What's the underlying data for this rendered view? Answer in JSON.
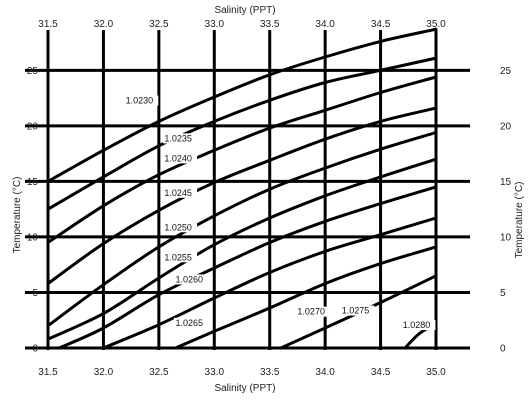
{
  "chart_data": {
    "type": "line",
    "title": "",
    "xlabel_top": "Salinity (PPT)",
    "xlabel_bottom": "Salinity (PPT)",
    "ylabel_left": "Temperature (°C)",
    "ylabel_right": "Temperature (°C)",
    "xlim": [
      31.5,
      35.0
    ],
    "ylim": [
      0,
      28
    ],
    "x_ticks": [
      31.5,
      32.0,
      32.5,
      33.0,
      33.5,
      34.0,
      34.5,
      35.0
    ],
    "x_tick_labels_top": [
      "31.5",
      "32.0",
      "32.5",
      "33.0",
      "33.5",
      "34.0",
      "34.5",
      "35.0"
    ],
    "x_tick_labels_bottom": [
      "31.5",
      "32.0",
      "32.5",
      "33.0",
      "33.5",
      "34.0",
      "34.5",
      "35.0"
    ],
    "y_ticks": [
      0,
      5,
      10,
      15,
      20,
      25
    ],
    "y_tick_labels": [
      "0",
      "5",
      "10",
      "15",
      "20",
      "25"
    ],
    "grid": true,
    "series": [
      {
        "name": "1.0230",
        "label_at": [
          32.2,
          22.0
        ],
        "points": [
          [
            31.5,
            15.0
          ],
          [
            32.0,
            17.8
          ],
          [
            32.5,
            20.4
          ],
          [
            33.0,
            22.6
          ],
          [
            33.5,
            24.6
          ],
          [
            34.0,
            26.2
          ],
          [
            34.5,
            27.6
          ],
          [
            35.0,
            28.7
          ]
        ]
      },
      {
        "name": "1.0235",
        "label_at": [
          32.55,
          18.6
        ],
        "points": [
          [
            31.5,
            12.5
          ],
          [
            32.0,
            15.4
          ],
          [
            32.5,
            18.2
          ],
          [
            33.0,
            20.4
          ],
          [
            33.5,
            22.3
          ],
          [
            34.0,
            23.9
          ],
          [
            34.5,
            25.0
          ],
          [
            35.0,
            26.1
          ]
        ]
      },
      {
        "name": "1.0240",
        "label_at": [
          32.55,
          16.8
        ],
        "points": [
          [
            31.5,
            9.5
          ],
          [
            32.0,
            12.8
          ],
          [
            32.5,
            15.6
          ],
          [
            33.0,
            17.8
          ],
          [
            33.5,
            19.8
          ],
          [
            34.0,
            21.4
          ],
          [
            34.5,
            23.0
          ],
          [
            35.0,
            24.4
          ]
        ]
      },
      {
        "name": "1.0245",
        "label_at": [
          32.55,
          13.7
        ],
        "points": [
          [
            31.5,
            5.8
          ],
          [
            32.0,
            9.4
          ],
          [
            32.5,
            12.4
          ],
          [
            33.0,
            14.9
          ],
          [
            33.5,
            16.9
          ],
          [
            34.0,
            18.8
          ],
          [
            34.5,
            20.4
          ],
          [
            35.0,
            21.6
          ]
        ]
      },
      {
        "name": "1.0250",
        "label_at": [
          32.55,
          10.6
        ],
        "points": [
          [
            31.5,
            2.0
          ],
          [
            32.0,
            5.7
          ],
          [
            32.5,
            9.1
          ],
          [
            33.0,
            11.9
          ],
          [
            33.5,
            14.3
          ],
          [
            34.0,
            16.2
          ],
          [
            34.5,
            17.9
          ],
          [
            35.0,
            19.4
          ]
        ]
      },
      {
        "name": "1.0255",
        "label_at": [
          32.55,
          7.9
        ],
        "points": [
          [
            31.5,
            0.8
          ],
          [
            32.0,
            3.1
          ],
          [
            32.5,
            6.3
          ],
          [
            33.0,
            9.3
          ],
          [
            33.5,
            11.7
          ],
          [
            34.0,
            13.7
          ],
          [
            34.5,
            15.4
          ],
          [
            35.0,
            17.0
          ]
        ]
      },
      {
        "name": "1.0260",
        "label_at": [
          32.65,
          5.9
        ],
        "points": [
          [
            31.6,
            0.0
          ],
          [
            32.0,
            1.8
          ],
          [
            32.5,
            4.8
          ],
          [
            33.0,
            7.2
          ],
          [
            33.5,
            9.5
          ],
          [
            34.0,
            11.4
          ],
          [
            34.5,
            13.0
          ],
          [
            35.0,
            14.5
          ]
        ]
      },
      {
        "name": "1.0265",
        "label_at": [
          32.65,
          2.0
        ],
        "points": [
          [
            32.0,
            0.0
          ],
          [
            32.5,
            2.1
          ],
          [
            33.0,
            4.5
          ],
          [
            33.5,
            6.8
          ],
          [
            34.0,
            8.7
          ],
          [
            34.5,
            10.2
          ],
          [
            35.0,
            11.7
          ]
        ]
      },
      {
        "name": "1.0270",
        "label_at": [
          33.75,
          3.0
        ],
        "points": [
          [
            32.65,
            0.0
          ],
          [
            33.0,
            1.5
          ],
          [
            33.5,
            3.6
          ],
          [
            34.0,
            5.8
          ],
          [
            34.5,
            7.6
          ],
          [
            35.0,
            9.1
          ]
        ]
      },
      {
        "name": "1.0275",
        "label_at": [
          34.15,
          3.1
        ],
        "points": [
          [
            33.6,
            0.0
          ],
          [
            34.0,
            1.8
          ],
          [
            34.5,
            4.1
          ],
          [
            35.0,
            6.5
          ]
        ]
      },
      {
        "name": "1.0280",
        "label_at": [
          34.7,
          1.8
        ],
        "points": [
          [
            34.72,
            0.0
          ],
          [
            34.85,
            1.3
          ],
          [
            35.0,
            2.2
          ]
        ]
      }
    ]
  }
}
